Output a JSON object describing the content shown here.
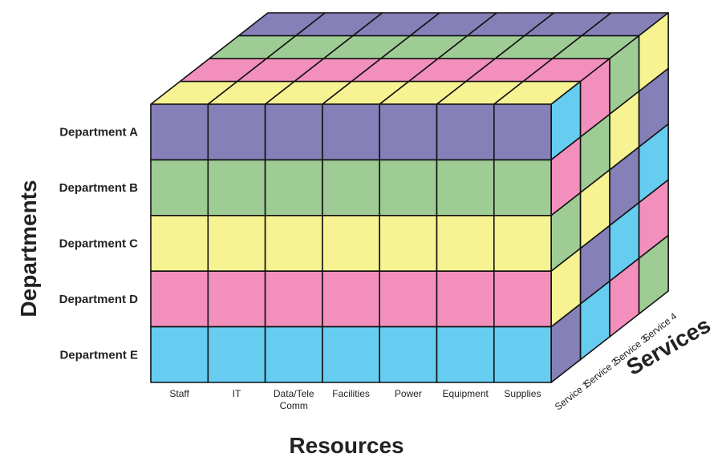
{
  "axes": {
    "departments_title": "Departments",
    "resources_title": "Resources",
    "services_title": "Services"
  },
  "departments": [
    {
      "label": "Department A",
      "color": "#8580b8"
    },
    {
      "label": "Department B",
      "color": "#9ecc94"
    },
    {
      "label": "Department C",
      "color": "#f7f292"
    },
    {
      "label": "Department D",
      "color": "#f28fbd"
    },
    {
      "label": "Department E",
      "color": "#66ccf0"
    }
  ],
  "resources": [
    {
      "lines": [
        "Staff"
      ]
    },
    {
      "lines": [
        "IT"
      ]
    },
    {
      "lines": [
        "Data/Tele",
        "Comm"
      ]
    },
    {
      "lines": [
        "Facilities"
      ]
    },
    {
      "lines": [
        "Power"
      ]
    },
    {
      "lines": [
        "Equipment"
      ]
    },
    {
      "lines": [
        "Supplies"
      ]
    }
  ],
  "services": [
    "Service 1",
    "Service 2",
    "Service 3",
    "Service 4"
  ],
  "colors": {
    "purple": "#8580b8",
    "green": "#9ecc94",
    "yellow": "#f7f292",
    "pink": "#f28fbd",
    "blue": "#66ccf0",
    "edge": "#111111"
  }
}
